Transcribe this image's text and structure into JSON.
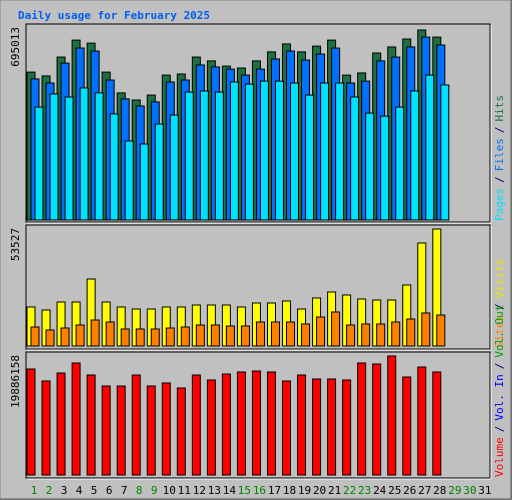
{
  "chart_data": [
    {
      "type": "bar",
      "title": "Daily usage for February 2025",
      "ylim": [
        0,
        695013
      ],
      "yticks": [
        695013
      ],
      "legend_separator": "/",
      "series": [
        {
          "name": "Pages",
          "color": "#00E0FF",
          "values": [
            413000,
            461000,
            450000,
            483000,
            465000,
            388000,
            289000,
            278000,
            351000,
            384000,
            468000,
            472000,
            468000,
            505000,
            497000,
            508000,
            508000,
            501000,
            457000,
            501000,
            501000,
            450000,
            391000,
            380000,
            413000,
            472000,
            530000,
            494000,
            null,
            null,
            null
          ]
        },
        {
          "name": "Files",
          "color": "#0070FF",
          "values": [
            516000,
            501000,
            574000,
            629000,
            618000,
            512000,
            443000,
            417000,
            432000,
            505000,
            512000,
            567000,
            560000,
            552000,
            530000,
            552000,
            589000,
            618000,
            585000,
            607000,
            629000,
            501000,
            508000,
            582000,
            596000,
            633000,
            669000,
            640000,
            null,
            null,
            null
          ]
        },
        {
          "name": "Hits",
          "color": "#1E7040",
          "values": [
            541000,
            527000,
            596000,
            658000,
            647000,
            541000,
            465000,
            439000,
            457000,
            530000,
            534000,
            596000,
            582000,
            563000,
            556000,
            582000,
            615000,
            644000,
            615000,
            636000,
            658000,
            530000,
            538000,
            611000,
            633000,
            662000,
            695013,
            669000,
            null,
            null,
            null
          ]
        }
      ]
    },
    {
      "type": "bar",
      "ylim": [
        0,
        53527
      ],
      "yticks": [
        53527
      ],
      "legend_separator": "/",
      "series": [
        {
          "name": "Sites",
          "color": "#FF8000",
          "values": [
            8693,
            7320,
            8235,
            9608,
            11895,
            10980,
            7778,
            7778,
            7778,
            8235,
            8693,
            9608,
            9608,
            9150,
            9150,
            10980,
            10980,
            10980,
            10065,
            13268,
            15555,
            9608,
            10065,
            10065,
            10980,
            12353,
            15098,
            14183,
            null,
            null,
            null
          ]
        },
        {
          "name": "Visits",
          "color": "#FFFF00",
          "values": [
            17843,
            16470,
            20130,
            20130,
            30653,
            20130,
            17843,
            16928,
            16928,
            17843,
            17843,
            18758,
            18758,
            18758,
            17843,
            19673,
            19673,
            20588,
            16928,
            21960,
            24705,
            23333,
            21503,
            21045,
            21045,
            27908,
            47123,
            53527,
            null,
            null,
            null
          ]
        }
      ]
    },
    {
      "type": "bar",
      "ylim": [
        0,
        19886158
      ],
      "yticks": [
        19886158
      ],
      "legend_separator": "/",
      "categories": [
        "1",
        "2",
        "3",
        "4",
        "5",
        "6",
        "7",
        "8",
        "9",
        "10",
        "11",
        "12",
        "13",
        "14",
        "15",
        "16",
        "17",
        "18",
        "19",
        "20",
        "21",
        "22",
        "23",
        "24",
        "25",
        "26",
        "27",
        "28",
        "29",
        "30",
        "31"
      ],
      "category_colors": [
        "#008000",
        "#008000",
        "#000000",
        "#000000",
        "#000000",
        "#000000",
        "#000000",
        "#008000",
        "#008000",
        "#000000",
        "#000000",
        "#000000",
        "#000000",
        "#000000",
        "#008000",
        "#008000",
        "#000000",
        "#000000",
        "#000000",
        "#000000",
        "#000000",
        "#008000",
        "#008000",
        "#000000",
        "#000000",
        "#000000",
        "#000000",
        "#000000",
        "#008000",
        "#008000",
        "#000000"
      ],
      "series": [
        {
          "name": "Volume",
          "color": "#FF0000",
          "values": [
            17713766,
            15708434,
            17045322,
            18716432,
            16711100,
            14872879,
            14872879,
            16711100,
            14872879,
            15374212,
            14538657,
            16711100,
            15875545,
            16878211,
            17212433,
            17379544,
            17212433,
            15708434,
            16711100,
            16042656,
            16042656,
            15875545,
            18716432,
            18549321,
            19886158,
            16376878,
            18047988,
            17212433,
            null,
            null,
            null
          ]
        },
        {
          "name": "Vol. In",
          "color": "#0000FF",
          "values": [
            null,
            null,
            null,
            null,
            null,
            null,
            null,
            null,
            null,
            null,
            null,
            null,
            null,
            null,
            null,
            null,
            null,
            null,
            null,
            null,
            null,
            null,
            null,
            null,
            null,
            null,
            null,
            null,
            null,
            null,
            null
          ]
        },
        {
          "name": "Vol. Out",
          "color": "#00A000",
          "values": [
            null,
            null,
            null,
            null,
            null,
            null,
            null,
            null,
            null,
            null,
            null,
            null,
            null,
            null,
            null,
            null,
            null,
            null,
            null,
            null,
            null,
            null,
            null,
            null,
            null,
            null,
            null,
            null,
            null,
            null,
            null
          ]
        }
      ]
    }
  ]
}
